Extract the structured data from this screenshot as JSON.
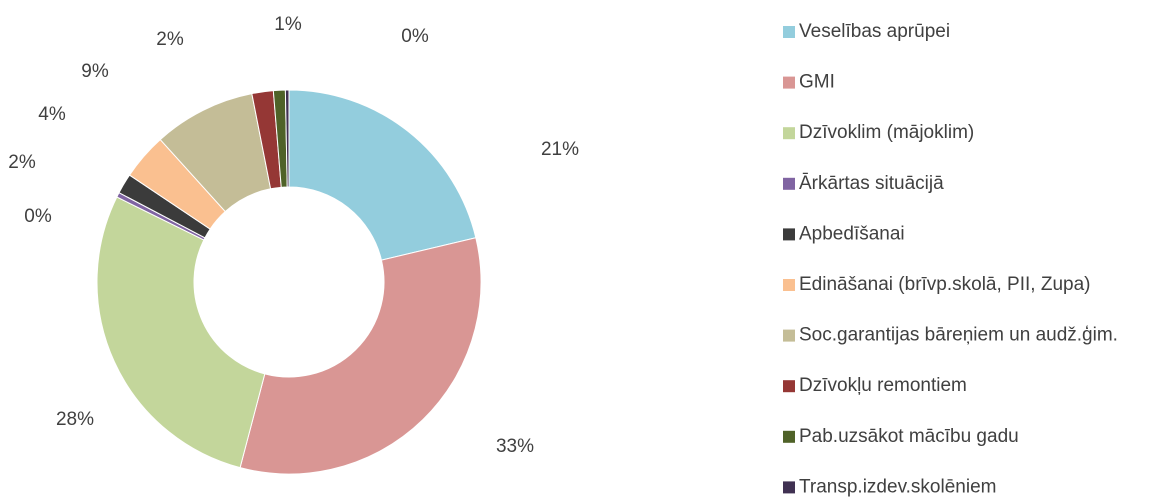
{
  "chart_data": {
    "type": "donut",
    "categories": [
      "Veselības aprūpei",
      "GMI",
      "Dzīvoklim (mājoklim)",
      "Ārkārtas situācijā",
      "Apbedīšanai",
      "Edināšanai (brīvp.skolā, PII, Zupa)",
      "Soc.garantijas bāreņiem un audž.ģim.",
      "Dzīvokļu remontiem",
      "Pab.uzsākot mācību gadu",
      "Transp.izdev.skolēniem"
    ],
    "values": [
      21.3,
      32.8,
      28.2,
      0.4,
      1.7,
      3.9,
      8.6,
      1.8,
      1.0,
      0.3
    ],
    "value_labels": [
      "21%",
      "33%",
      "28%",
      "0%",
      "2%",
      "4%",
      "9%",
      "2%",
      "1%",
      "0%"
    ],
    "colors": [
      "#93cddd",
      "#d99694",
      "#c3d69b",
      "#8064a2",
      "#3b3b3b",
      "#fac090",
      "#c4bd97",
      "#953735",
      "#4f6228",
      "#403152"
    ],
    "legend": "right"
  }
}
